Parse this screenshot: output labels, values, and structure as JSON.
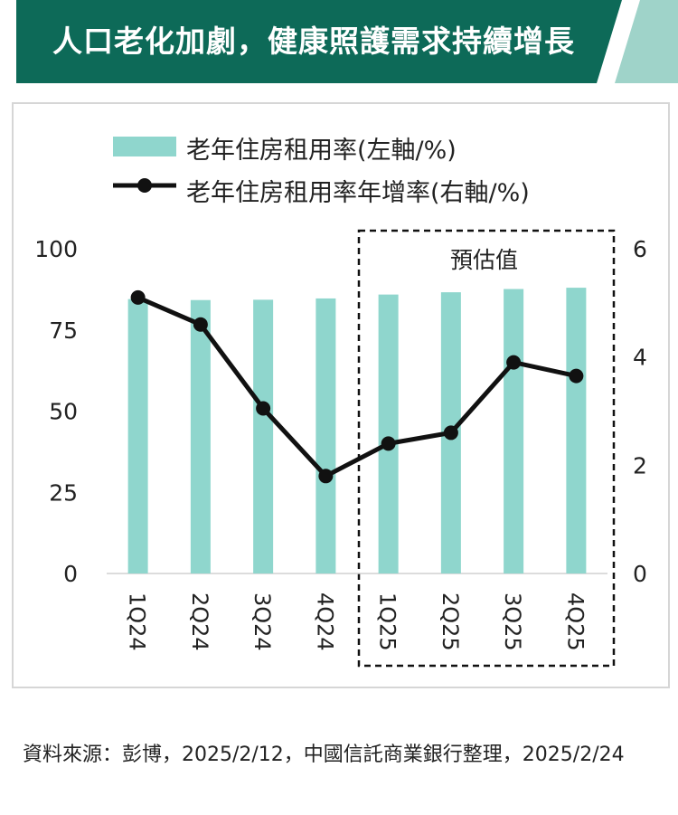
{
  "header": {
    "title": "人口老化加劇，健康照護需求持續增長"
  },
  "colors": {
    "banner": "#0d6a58",
    "banner_accent": "#9fd3c9",
    "bar": "#8fd6cd",
    "line": "#111111"
  },
  "chart_data": {
    "type": "bar",
    "categories": [
      "1Q24",
      "2Q24",
      "3Q24",
      "4Q24",
      "1Q25",
      "2Q25",
      "3Q25",
      "4Q25"
    ],
    "series": [
      {
        "name": "老年住房租用率(左軸/%)",
        "type": "bar",
        "axis": "left",
        "values": [
          84.5,
          84.2,
          84.3,
          84.7,
          85.9,
          86.6,
          87.6,
          88.0
        ]
      },
      {
        "name": "老年住房租用率年增率(右軸/%)",
        "type": "line",
        "axis": "right",
        "values": [
          5.1,
          4.6,
          3.05,
          1.8,
          2.4,
          2.6,
          3.9,
          3.65
        ]
      }
    ],
    "left_axis": {
      "range": [
        0,
        100
      ],
      "ticks": [
        "0",
        "25",
        "50",
        "75",
        "100"
      ]
    },
    "right_axis": {
      "range": [
        0,
        6
      ],
      "ticks": [
        "0",
        "2",
        "4",
        "6"
      ]
    },
    "forecast_label": "預估值",
    "forecast_categories": [
      "1Q25",
      "2Q25",
      "3Q25",
      "4Q25"
    ],
    "grid": false,
    "legend_position": "top-left"
  },
  "source_text": "資料來源：彭博，2025/2/12，中國信託商業銀行整理，2025/2/24"
}
